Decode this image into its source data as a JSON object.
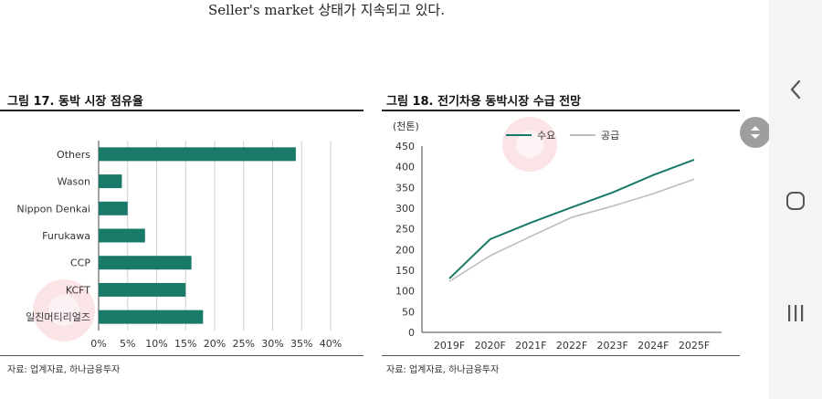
{
  "header": {
    "text": "Seller's market 상태가 지속되고 있다."
  },
  "figure17": {
    "title": "그림 17. 동박 시장 점유율",
    "source": "자료: 업계자료, 하나금융투자"
  },
  "figure18": {
    "title": "그림 18. 전기차용 동박시장 수급 전망",
    "unit": "(천톤)",
    "source": "자료: 업계자료, 하나금융투자"
  },
  "colors": {
    "accent": "#1a7a6a",
    "supply": "#bdbdbd",
    "grid": "#cfcfcf",
    "watermark": "#f3b3b8"
  },
  "nav": {
    "back_icon": "chevron-left-icon",
    "home_icon": "home-icon",
    "recents_icon": "recent-apps-icon",
    "scroll_icon": "scroll-handle-icon"
  },
  "chart_data": [
    {
      "type": "bar",
      "orientation": "horizontal",
      "title": "그림 17. 동박 시장 점유율",
      "categories": [
        "Others",
        "Wason",
        "Nippon Denkai",
        "Furukawa",
        "CCP",
        "KCFT",
        "일진머티리얼즈"
      ],
      "values": [
        34,
        4,
        5,
        8,
        16,
        15,
        18
      ],
      "xlim": [
        0,
        40
      ],
      "xticks": [
        "0%",
        "5%",
        "10%",
        "15%",
        "20%",
        "25%",
        "30%",
        "35%",
        "40%"
      ],
      "grid": true
    },
    {
      "type": "line",
      "title": "그림 18. 전기차용 동박시장 수급 전망",
      "ylabel": "(천톤)",
      "categories": [
        "2019F",
        "2020F",
        "2021F",
        "2022F",
        "2023F",
        "2024F",
        "2025F"
      ],
      "yticks": [
        "0",
        "50",
        "100",
        "150",
        "200",
        "250",
        "300",
        "350",
        "400",
        "450"
      ],
      "ylim": [
        0,
        450
      ],
      "legend": "top-center",
      "series": [
        {
          "name": "수요",
          "values": [
            130,
            225,
            265,
            302,
            338,
            380,
            417
          ]
        },
        {
          "name": "공급",
          "values": [
            123,
            185,
            232,
            278,
            305,
            335,
            370
          ]
        }
      ]
    }
  ]
}
